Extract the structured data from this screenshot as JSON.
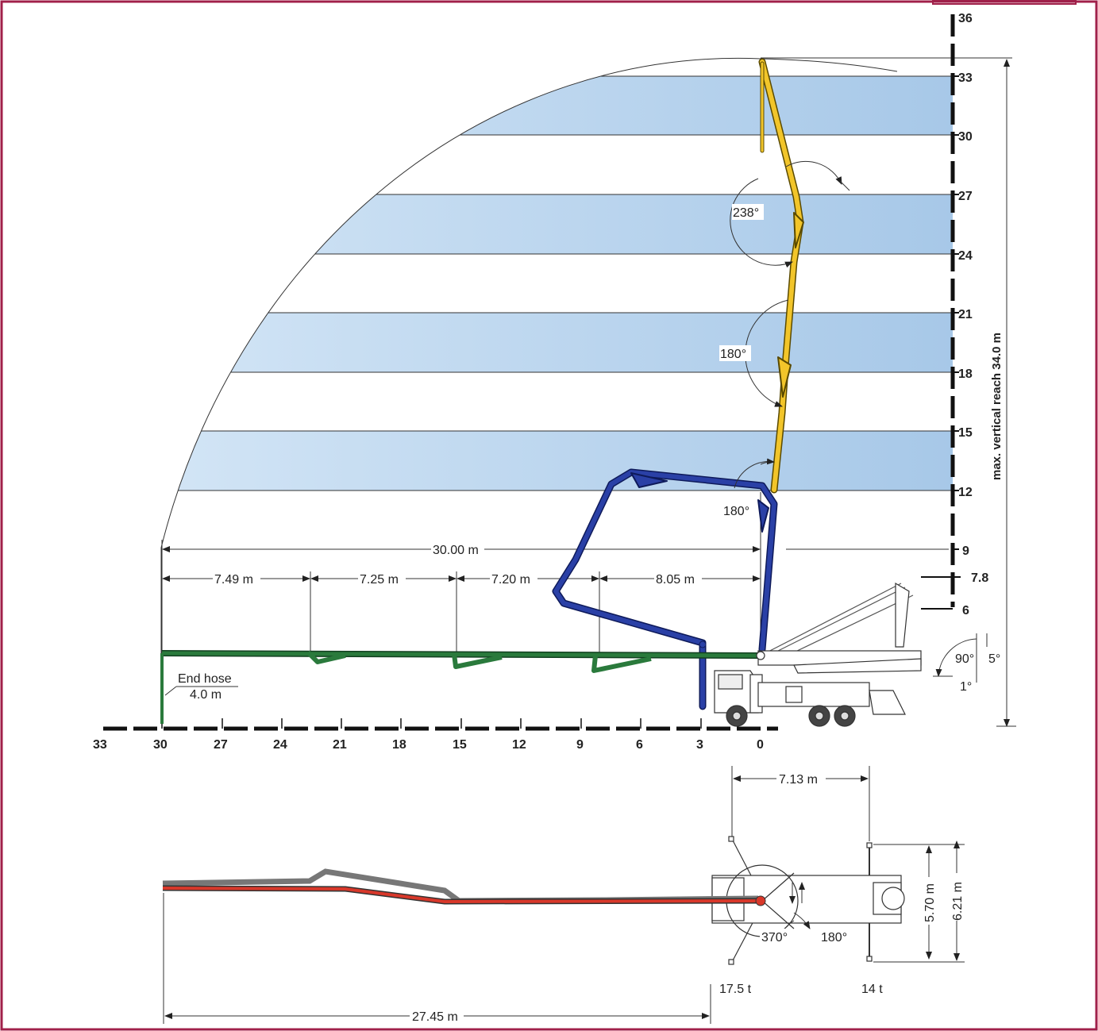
{
  "diagram": {
    "y_axis": {
      "title": "max. vertical reach 34.0 m",
      "ticks": [
        "36",
        "33",
        "30",
        "27",
        "24",
        "21",
        "18",
        "15",
        "12",
        "9",
        "7.8",
        "6"
      ]
    },
    "x_axis": {
      "ticks": [
        "33",
        "30",
        "27",
        "24",
        "21",
        "18",
        "15",
        "12",
        "9",
        "6",
        "3",
        "0"
      ]
    },
    "dimensions": {
      "total_reach": "30.00 m",
      "section_1": "7.49 m",
      "section_2": "7.25 m",
      "section_3": "7.20 m",
      "section_4": "8.05 m",
      "end_hose_label": "End hose",
      "end_hose_length": "4.0 m"
    },
    "angles": {
      "boom_top": "238°",
      "boom_mid": "180°",
      "boom_low": "180°",
      "slew_90": "90°",
      "slew_5": "5°",
      "slew_1": "1°"
    },
    "plan_view": {
      "outrigger_span_length": "7.13 m",
      "outrigger_width_front": "5.70 m",
      "outrigger_width_rear": "6.21 m",
      "slewing_range": "370°",
      "boom_rotation": "180°",
      "front_load": "17.5 t",
      "rear_load": "14 t",
      "horizontal_reach": "27.45 m"
    },
    "colors": {
      "frame": "#a0204a",
      "band": "#a9cbe9",
      "boom_yellow": "#f2c52a",
      "boom_blue": "#2a40a6",
      "boom_green": "#2a7a3c",
      "boom_red": "#d8382a"
    }
  }
}
